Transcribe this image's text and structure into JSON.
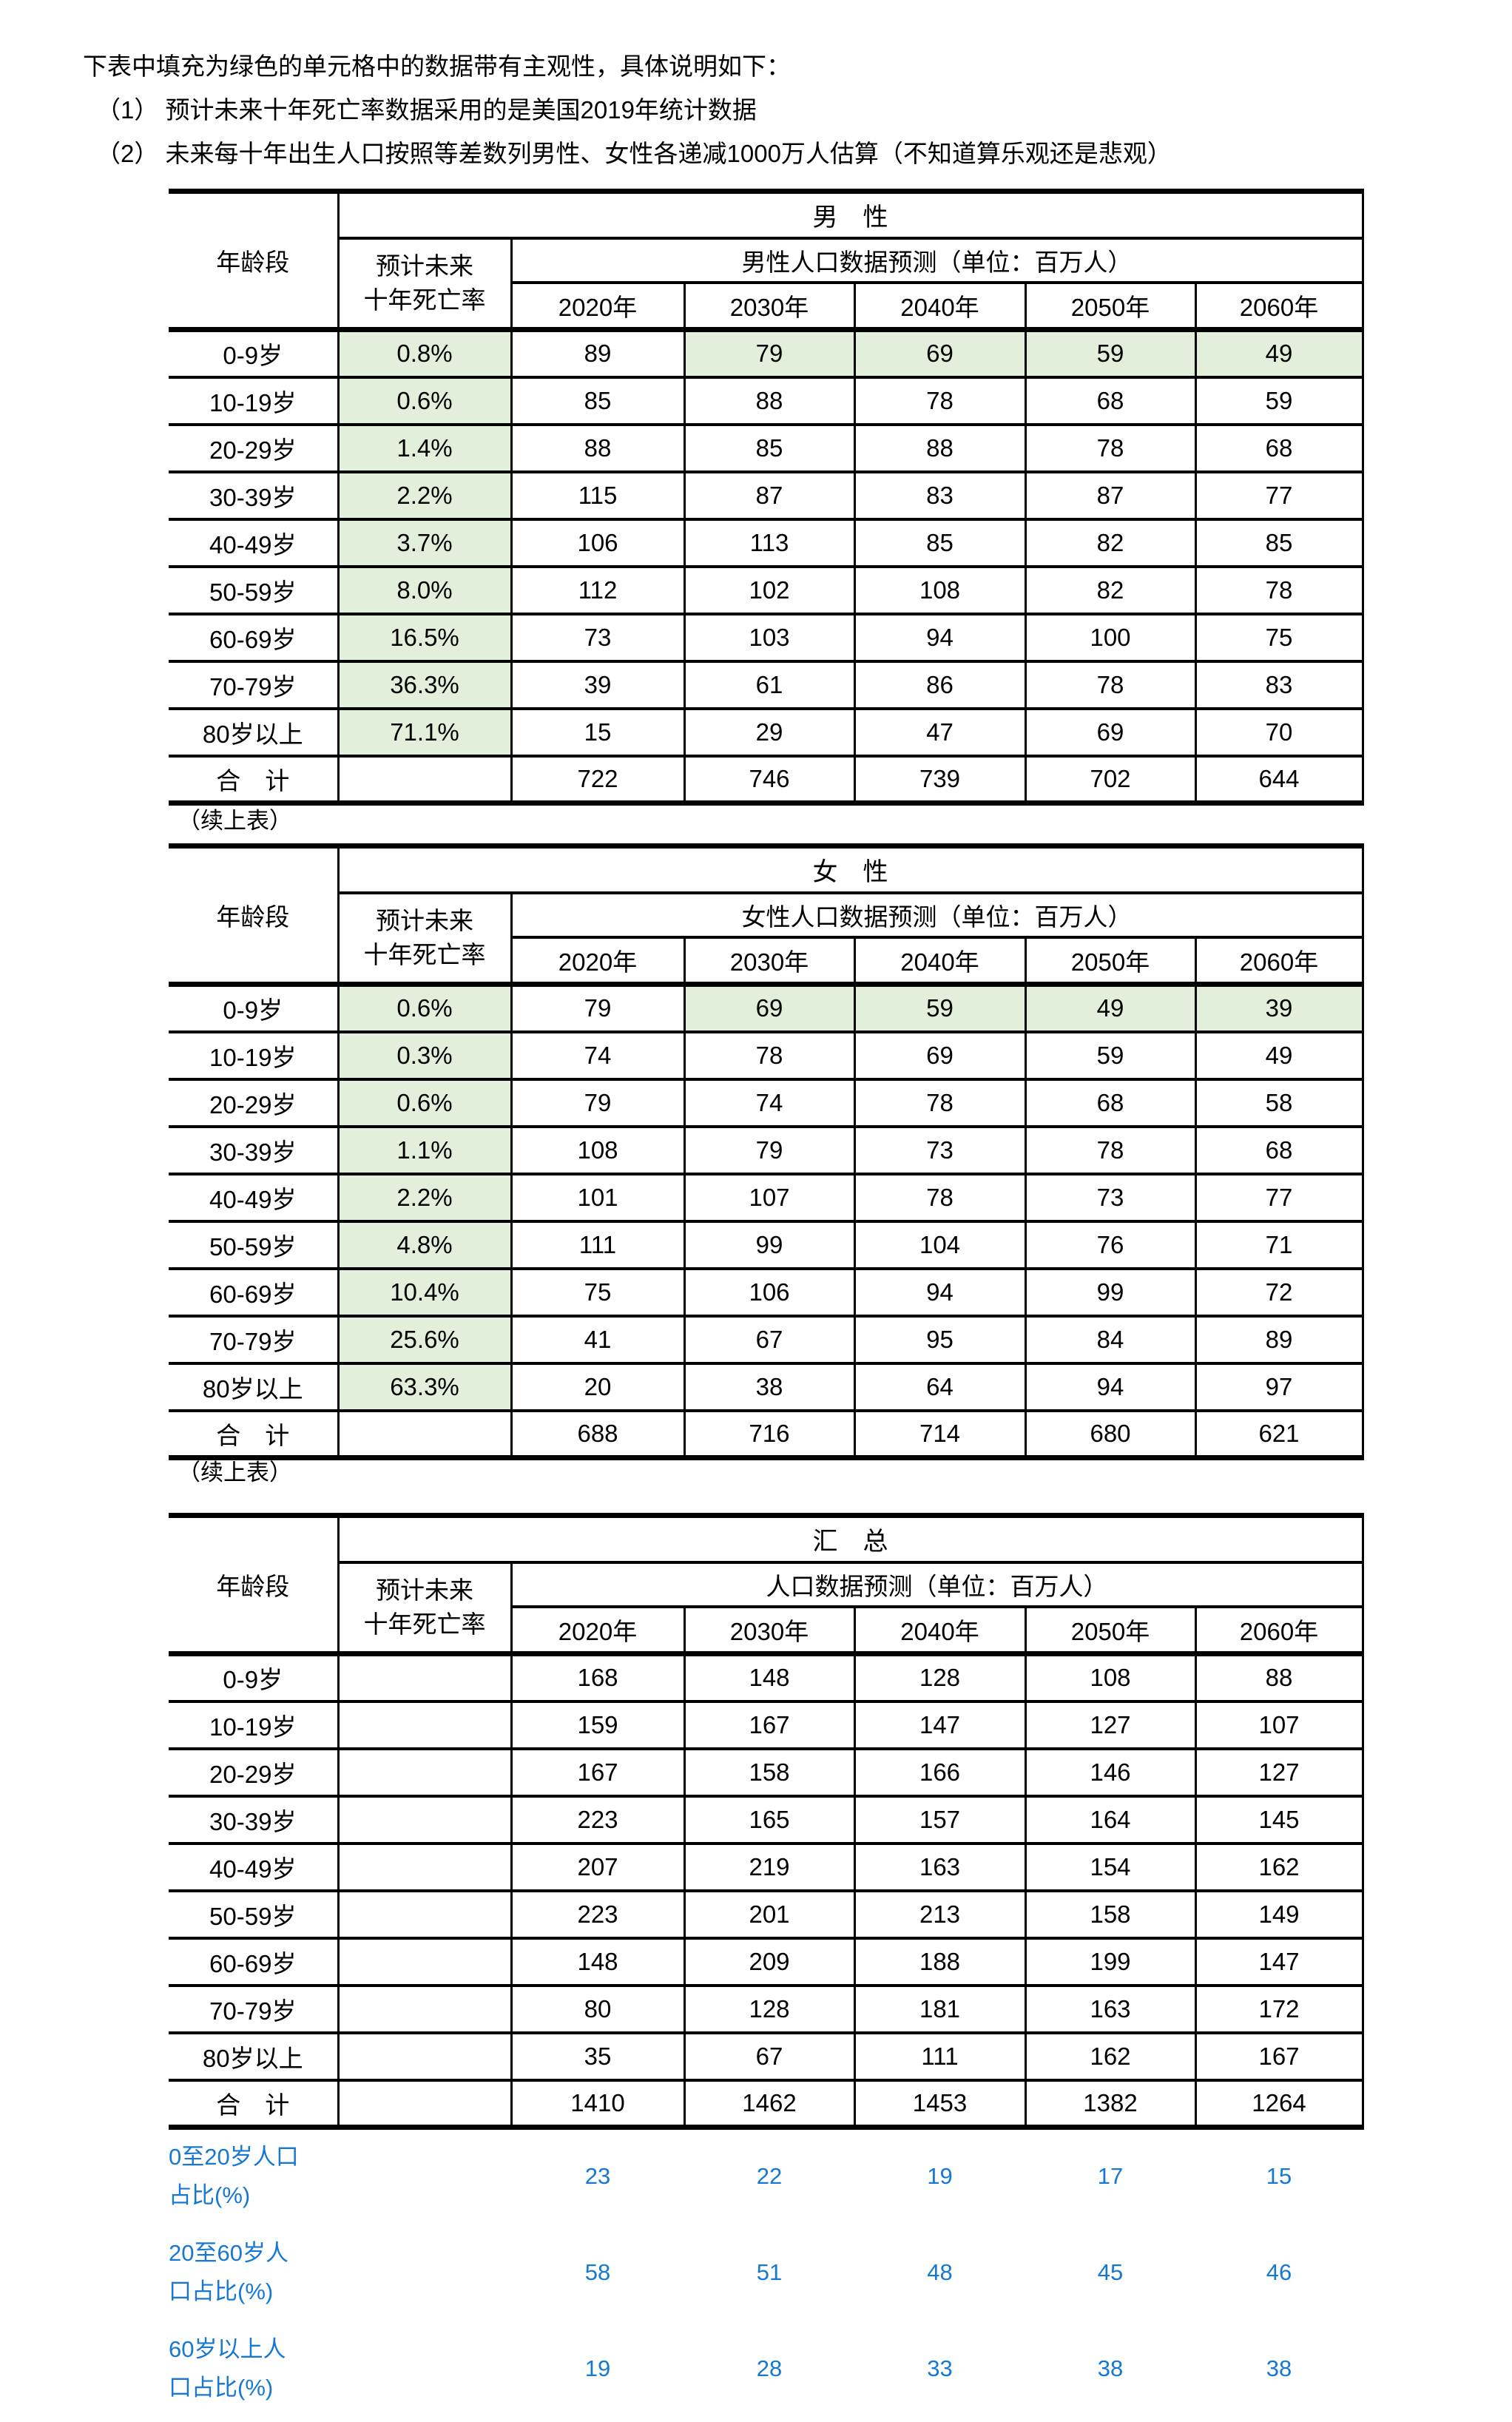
{
  "page": {
    "intro": "下表中填充为绿色的单元格中的数据带有主观性，具体说明如下：",
    "note1": "（1） 预计未来十年死亡率数据采用的是美国2019年统计数据",
    "note2": "（2） 未来每十年出生人口按照等差数列男性、女性各递减1000万人估算（不知道算乐观还是悲观）",
    "continued_label": "（续上表）"
  },
  "colors": {
    "highlight_green": "#e2efda",
    "note_blue": "#1678d2",
    "border_black": "#000000"
  },
  "shared": {
    "age_col_header": "年龄段",
    "mortality_col_header_line1": "预计未来",
    "mortality_col_header_line2": "十年死亡率",
    "years": [
      "2020年",
      "2030年",
      "2040年",
      "2050年",
      "2060年"
    ],
    "total_label": "合　计"
  },
  "tables": [
    {
      "group_title": "男　性",
      "data_title": "男性人口数据预测（单位：百万人）",
      "rows": [
        {
          "age": "0-9岁",
          "mortality": "0.8%",
          "mgreen": true,
          "values": [
            89,
            79,
            69,
            59,
            49
          ],
          "vgreen": [
            0,
            1,
            1,
            1,
            1
          ]
        },
        {
          "age": "10-19岁",
          "mortality": "0.6%",
          "mgreen": true,
          "values": [
            85,
            88,
            78,
            68,
            59
          ]
        },
        {
          "age": "20-29岁",
          "mortality": "1.4%",
          "mgreen": true,
          "values": [
            88,
            85,
            88,
            78,
            68
          ]
        },
        {
          "age": "30-39岁",
          "mortality": "2.2%",
          "mgreen": true,
          "values": [
            115,
            87,
            83,
            87,
            77
          ]
        },
        {
          "age": "40-49岁",
          "mortality": "3.7%",
          "mgreen": true,
          "values": [
            106,
            113,
            85,
            82,
            85
          ]
        },
        {
          "age": "50-59岁",
          "mortality": "8.0%",
          "mgreen": true,
          "values": [
            112,
            102,
            108,
            82,
            78
          ]
        },
        {
          "age": "60-69岁",
          "mortality": "16.5%",
          "mgreen": true,
          "values": [
            73,
            103,
            94,
            100,
            75
          ]
        },
        {
          "age": "70-79岁",
          "mortality": "36.3%",
          "mgreen": true,
          "values": [
            39,
            61,
            86,
            78,
            83
          ]
        },
        {
          "age": "80岁以上",
          "mortality": "71.1%",
          "mgreen": true,
          "values": [
            15,
            29,
            47,
            69,
            70
          ]
        }
      ],
      "total": [
        722,
        746,
        739,
        702,
        644
      ]
    },
    {
      "group_title": "女　性",
      "data_title": "女性人口数据预测（单位：百万人）",
      "rows": [
        {
          "age": "0-9岁",
          "mortality": "0.6%",
          "mgreen": true,
          "values": [
            79,
            69,
            59,
            49,
            39
          ],
          "vgreen": [
            0,
            1,
            1,
            1,
            1
          ]
        },
        {
          "age": "10-19岁",
          "mortality": "0.3%",
          "mgreen": true,
          "values": [
            74,
            78,
            69,
            59,
            49
          ]
        },
        {
          "age": "20-29岁",
          "mortality": "0.6%",
          "mgreen": true,
          "values": [
            79,
            74,
            78,
            68,
            58
          ]
        },
        {
          "age": "30-39岁",
          "mortality": "1.1%",
          "mgreen": true,
          "values": [
            108,
            79,
            73,
            78,
            68
          ]
        },
        {
          "age": "40-49岁",
          "mortality": "2.2%",
          "mgreen": true,
          "values": [
            101,
            107,
            78,
            73,
            77
          ]
        },
        {
          "age": "50-59岁",
          "mortality": "4.8%",
          "mgreen": true,
          "values": [
            111,
            99,
            104,
            76,
            71
          ]
        },
        {
          "age": "60-69岁",
          "mortality": "10.4%",
          "mgreen": true,
          "values": [
            75,
            106,
            94,
            99,
            72
          ]
        },
        {
          "age": "70-79岁",
          "mortality": "25.6%",
          "mgreen": true,
          "values": [
            41,
            67,
            95,
            84,
            89
          ]
        },
        {
          "age": "80岁以上",
          "mortality": "63.3%",
          "mgreen": true,
          "values": [
            20,
            38,
            64,
            94,
            97
          ]
        }
      ],
      "total": [
        688,
        716,
        714,
        680,
        621
      ]
    },
    {
      "group_title": "汇　总",
      "data_title": "人口数据预测（单位：百万人）",
      "rows": [
        {
          "age": "0-9岁",
          "mortality": "",
          "values": [
            168,
            148,
            128,
            108,
            88
          ]
        },
        {
          "age": "10-19岁",
          "mortality": "",
          "values": [
            159,
            167,
            147,
            127,
            107
          ]
        },
        {
          "age": "20-29岁",
          "mortality": "",
          "values": [
            167,
            158,
            166,
            146,
            127
          ]
        },
        {
          "age": "30-39岁",
          "mortality": "",
          "values": [
            223,
            165,
            157,
            164,
            145
          ]
        },
        {
          "age": "40-49岁",
          "mortality": "",
          "values": [
            207,
            219,
            163,
            154,
            162
          ]
        },
        {
          "age": "50-59岁",
          "mortality": "",
          "values": [
            223,
            201,
            213,
            158,
            149
          ]
        },
        {
          "age": "60-69岁",
          "mortality": "",
          "values": [
            148,
            209,
            188,
            199,
            147
          ]
        },
        {
          "age": "70-79岁",
          "mortality": "",
          "values": [
            80,
            128,
            181,
            163,
            172
          ]
        },
        {
          "age": "80岁以上",
          "mortality": "",
          "values": [
            35,
            67,
            111,
            162,
            167
          ]
        }
      ],
      "total": [
        1410,
        1462,
        1453,
        1382,
        1264
      ]
    }
  ],
  "ratios": [
    {
      "label_line1": "0至20岁人口",
      "label_line2": "占比(%)",
      "values": [
        23,
        22,
        19,
        17,
        15
      ]
    },
    {
      "label_line1": "20至60岁人",
      "label_line2": "口占比(%)",
      "values": [
        58,
        51,
        48,
        45,
        46
      ]
    },
    {
      "label_line1": "60岁以上人",
      "label_line2": "口占比(%)",
      "values": [
        19,
        28,
        33,
        38,
        38
      ]
    }
  ]
}
